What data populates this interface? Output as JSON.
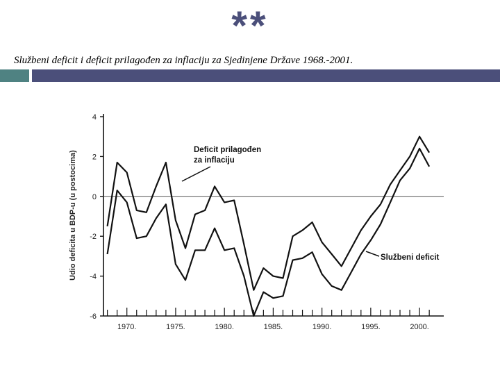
{
  "header": {
    "stars": "**",
    "title": "Službeni deficit i deficit prilagođen za inflaciju za Sjedinjene Države 1968.-2001."
  },
  "colors": {
    "accent_left": "#4f8282",
    "accent_right": "#4b4f7a",
    "line": "#111111"
  },
  "chart_data": {
    "type": "line",
    "ylabel": "Udio deficita u BDP-u (u postocima)",
    "ylim": [
      -6,
      4
    ],
    "yticks": [
      "4",
      "2",
      "0",
      "-2",
      "-4",
      "-6"
    ],
    "xlim": [
      1967.6,
      2002.2
    ],
    "xticks": [
      "1970.",
      "1975.",
      "1980.",
      "1985.",
      "1990.",
      "1995.",
      "2000."
    ],
    "grid": false,
    "annotations": [
      "Deficit prilagođen",
      "za inflaciju",
      "Službeni deficit"
    ],
    "series": [
      {
        "name": "Deficit prilagođen za inflaciju",
        "x": [
          1968,
          1969,
          1970,
          1971,
          1972,
          1973,
          1974,
          1975,
          1976,
          1977,
          1978,
          1979,
          1980,
          1981,
          1982,
          1983,
          1984,
          1985,
          1986,
          1987,
          1988,
          1989,
          1990,
          1991,
          1992,
          1993,
          1994,
          1995,
          1996,
          1997,
          1998,
          1999,
          2000,
          2001
        ],
        "values": [
          -1.5,
          1.7,
          1.2,
          -0.7,
          -0.8,
          0.5,
          1.7,
          -1.2,
          -2.6,
          -0.9,
          -0.7,
          0.5,
          -0.3,
          -0.2,
          -2.4,
          -4.7,
          -3.6,
          -4.0,
          -4.1,
          -2.0,
          -1.7,
          -1.3,
          -2.3,
          -2.9,
          -3.5,
          -2.6,
          -1.7,
          -1.0,
          -0.4,
          0.6,
          1.3,
          2.0,
          3.0,
          2.2
        ]
      },
      {
        "name": "Službeni deficit",
        "x": [
          1968,
          1969,
          1970,
          1971,
          1972,
          1973,
          1974,
          1975,
          1976,
          1977,
          1978,
          1979,
          1980,
          1981,
          1982,
          1983,
          1984,
          1985,
          1986,
          1987,
          1988,
          1989,
          1990,
          1991,
          1992,
          1993,
          1994,
          1995,
          1996,
          1997,
          1998,
          1999,
          2000,
          2001
        ],
        "values": [
          -2.9,
          0.3,
          -0.3,
          -2.1,
          -2.0,
          -1.1,
          -0.4,
          -3.4,
          -4.2,
          -2.7,
          -2.7,
          -1.6,
          -2.7,
          -2.6,
          -4.0,
          -6.0,
          -4.8,
          -5.1,
          -5.0,
          -3.2,
          -3.1,
          -2.8,
          -3.9,
          -4.5,
          -4.7,
          -3.8,
          -2.9,
          -2.2,
          -1.4,
          -0.3,
          0.8,
          1.4,
          2.4,
          1.5
        ]
      }
    ]
  }
}
